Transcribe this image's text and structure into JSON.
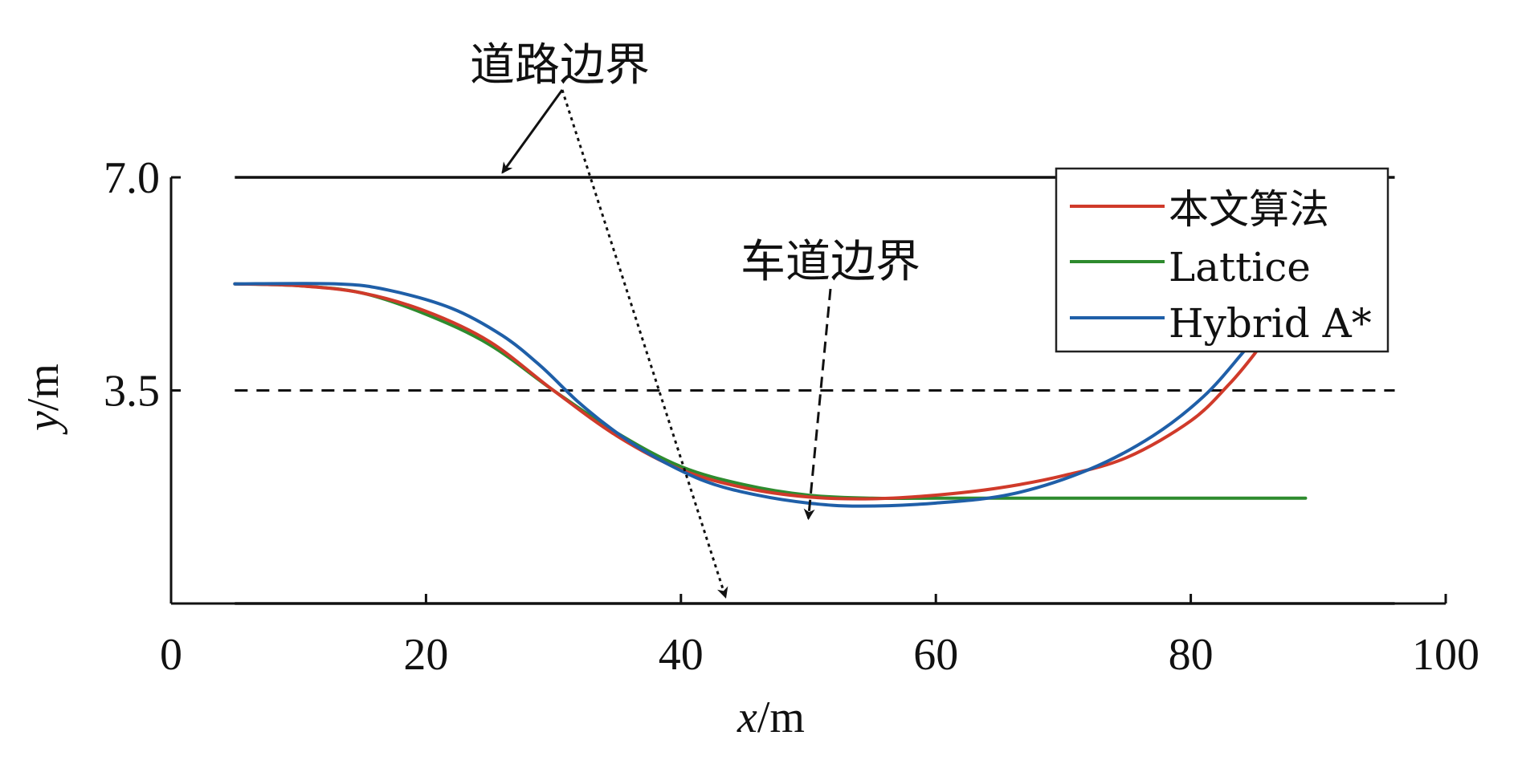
{
  "chart_data": {
    "type": "line",
    "title": "",
    "xlabel": {
      "var": "x",
      "unit": "/m"
    },
    "ylabel": {
      "var": "y",
      "unit": "/m"
    },
    "xlim": [
      0,
      100
    ],
    "ylim": [
      0,
      7.0
    ],
    "x_ticks": [
      0,
      20,
      40,
      60,
      80,
      100
    ],
    "x_tick_labels": [
      "0",
      "20",
      "40",
      "60",
      "80",
      "100"
    ],
    "y_ticks": [
      3.5,
      7.0
    ],
    "y_tick_labels": [
      "3.5",
      "7.0"
    ],
    "grid": false,
    "legend": {
      "placement": "top-right"
    },
    "boundaries": [
      {
        "y": 7.0,
        "style": "solid",
        "x_range": [
          5,
          96
        ]
      },
      {
        "y": 3.5,
        "style": "dashed",
        "x_range": [
          5,
          96
        ]
      },
      {
        "y": 0.0,
        "style": "solid",
        "x_range": [
          5,
          96
        ]
      }
    ],
    "annotations": [
      {
        "text": "道路边界",
        "targets": [
          [
            26,
            7.0
          ],
          [
            43.5,
            0.0
          ]
        ]
      },
      {
        "text": "车道边界",
        "targets": [
          [
            50,
            1.0
          ]
        ]
      }
    ],
    "series": [
      {
        "name": "本文算法",
        "color": "#d03a2a",
        "points": [
          [
            5,
            5.25
          ],
          [
            10,
            5.22
          ],
          [
            15,
            5.1
          ],
          [
            20,
            4.8
          ],
          [
            25,
            4.3
          ],
          [
            30,
            3.5
          ],
          [
            35,
            2.75
          ],
          [
            40,
            2.2
          ],
          [
            45,
            1.9
          ],
          [
            50,
            1.75
          ],
          [
            55,
            1.72
          ],
          [
            60,
            1.78
          ],
          [
            65,
            1.9
          ],
          [
            70,
            2.1
          ],
          [
            75,
            2.4
          ],
          [
            80,
            3.0
          ],
          [
            83,
            3.6
          ],
          [
            85,
            4.1
          ],
          [
            86.5,
            4.55
          ]
        ]
      },
      {
        "name": "Lattice",
        "color": "#2e8b2e",
        "points": [
          [
            5,
            5.25
          ],
          [
            10,
            5.22
          ],
          [
            15,
            5.1
          ],
          [
            20,
            4.75
          ],
          [
            25,
            4.25
          ],
          [
            30,
            3.5
          ],
          [
            35,
            2.8
          ],
          [
            40,
            2.25
          ],
          [
            45,
            1.95
          ],
          [
            50,
            1.78
          ],
          [
            55,
            1.73
          ],
          [
            60,
            1.73
          ],
          [
            65,
            1.73
          ],
          [
            70,
            1.73
          ],
          [
            75,
            1.73
          ],
          [
            80,
            1.73
          ],
          [
            84,
            1.73
          ],
          [
            89,
            1.73
          ]
        ]
      },
      {
        "name": "Hybrid A*",
        "color": "#1f5fa8",
        "points": [
          [
            5,
            5.25
          ],
          [
            13,
            5.25
          ],
          [
            17,
            5.15
          ],
          [
            22,
            4.85
          ],
          [
            26,
            4.4
          ],
          [
            29,
            3.9
          ],
          [
            32,
            3.3
          ],
          [
            35,
            2.8
          ],
          [
            38,
            2.4
          ],
          [
            42,
            2.0
          ],
          [
            46,
            1.78
          ],
          [
            50,
            1.65
          ],
          [
            54,
            1.6
          ],
          [
            60,
            1.65
          ],
          [
            66,
            1.8
          ],
          [
            72,
            2.2
          ],
          [
            77,
            2.75
          ],
          [
            81,
            3.4
          ],
          [
            84,
            4.1
          ],
          [
            85.5,
            4.5
          ]
        ]
      }
    ]
  }
}
